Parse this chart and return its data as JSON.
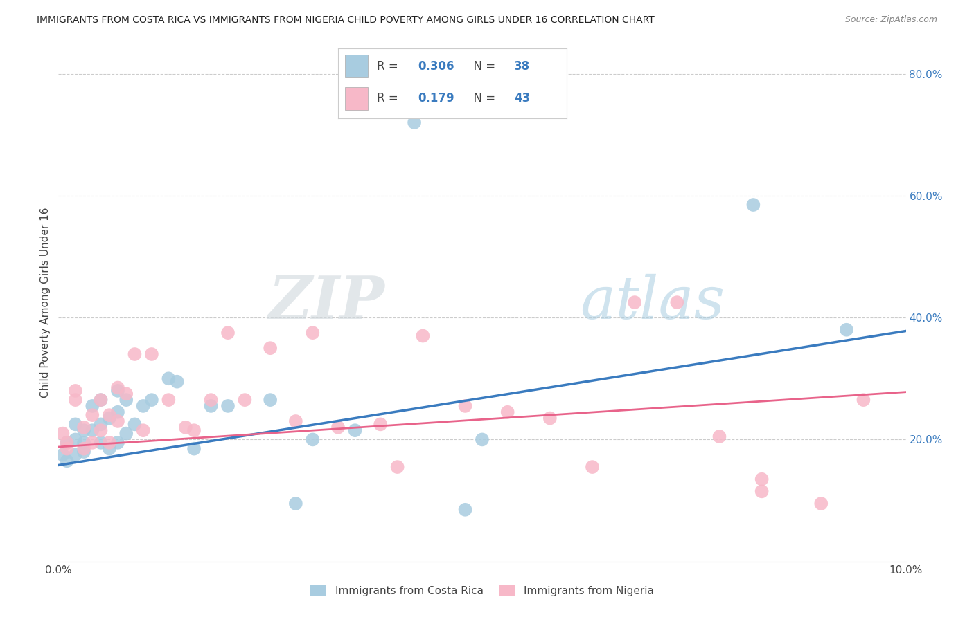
{
  "title": "IMMIGRANTS FROM COSTA RICA VS IMMIGRANTS FROM NIGERIA CHILD POVERTY AMONG GIRLS UNDER 16 CORRELATION CHART",
  "source": "Source: ZipAtlas.com",
  "ylabel": "Child Poverty Among Girls Under 16",
  "xlim": [
    0.0,
    0.1
  ],
  "ylim": [
    0.0,
    0.85
  ],
  "ytick_vals": [
    0.0,
    0.2,
    0.4,
    0.6,
    0.8
  ],
  "ytick_labels": [
    "",
    "20.0%",
    "40.0%",
    "60.0%",
    "80.0%"
  ],
  "xtick_vals": [
    0.0,
    0.01,
    0.02,
    0.03,
    0.04,
    0.05,
    0.06,
    0.07,
    0.08,
    0.09,
    0.1
  ],
  "xtick_labels": [
    "0.0%",
    "",
    "",
    "",
    "",
    "",
    "",
    "",
    "",
    "",
    "10.0%"
  ],
  "legend_labels": [
    "Immigrants from Costa Rica",
    "Immigrants from Nigeria"
  ],
  "R_costa_rica": 0.306,
  "N_costa_rica": 38,
  "R_nigeria": 0.179,
  "N_nigeria": 43,
  "blue_scatter_color": "#a8cce0",
  "pink_scatter_color": "#f7b8c8",
  "blue_line_color": "#3a7bbf",
  "pink_line_color": "#e8638a",
  "text_dark": "#444444",
  "text_blue": "#3a7bbf",
  "watermark_color": "#d8e8f0",
  "costa_rica_x": [
    0.0005,
    0.001,
    0.001,
    0.002,
    0.002,
    0.002,
    0.003,
    0.003,
    0.003,
    0.004,
    0.004,
    0.005,
    0.005,
    0.005,
    0.006,
    0.006,
    0.007,
    0.007,
    0.007,
    0.008,
    0.008,
    0.009,
    0.01,
    0.011,
    0.013,
    0.014,
    0.016,
    0.018,
    0.02,
    0.025,
    0.028,
    0.03,
    0.035,
    0.042,
    0.048,
    0.05,
    0.082,
    0.093
  ],
  "costa_rica_y": [
    0.175,
    0.195,
    0.165,
    0.175,
    0.2,
    0.225,
    0.215,
    0.195,
    0.18,
    0.255,
    0.215,
    0.265,
    0.225,
    0.195,
    0.235,
    0.185,
    0.28,
    0.245,
    0.195,
    0.265,
    0.21,
    0.225,
    0.255,
    0.265,
    0.3,
    0.295,
    0.185,
    0.255,
    0.255,
    0.265,
    0.095,
    0.2,
    0.215,
    0.72,
    0.085,
    0.2,
    0.585,
    0.38
  ],
  "nigeria_x": [
    0.0005,
    0.001,
    0.001,
    0.002,
    0.002,
    0.003,
    0.003,
    0.004,
    0.004,
    0.005,
    0.005,
    0.006,
    0.006,
    0.007,
    0.007,
    0.008,
    0.009,
    0.01,
    0.011,
    0.013,
    0.015,
    0.016,
    0.018,
    0.02,
    0.022,
    0.025,
    0.028,
    0.03,
    0.033,
    0.038,
    0.04,
    0.043,
    0.048,
    0.053,
    0.058,
    0.063,
    0.068,
    0.073,
    0.078,
    0.083,
    0.083,
    0.09,
    0.095
  ],
  "nigeria_y": [
    0.21,
    0.185,
    0.195,
    0.265,
    0.28,
    0.22,
    0.185,
    0.24,
    0.195,
    0.215,
    0.265,
    0.24,
    0.195,
    0.285,
    0.23,
    0.275,
    0.34,
    0.215,
    0.34,
    0.265,
    0.22,
    0.215,
    0.265,
    0.375,
    0.265,
    0.35,
    0.23,
    0.375,
    0.22,
    0.225,
    0.155,
    0.37,
    0.255,
    0.245,
    0.235,
    0.155,
    0.425,
    0.425,
    0.205,
    0.135,
    0.115,
    0.095,
    0.265
  ]
}
